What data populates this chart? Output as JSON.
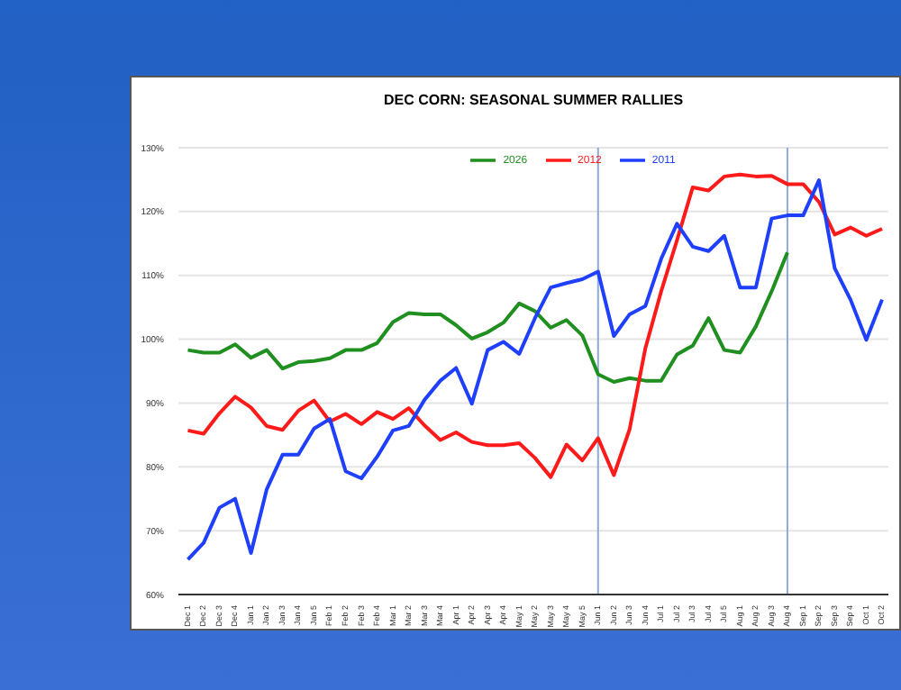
{
  "chart_data": {
    "type": "line",
    "title": "DEC CORN: SEASONAL SUMMER RALLIES",
    "categories": [
      "Dec 1",
      "Dec 2",
      "Dec 3",
      "Dec 4",
      "Jan 1",
      "Jan 2",
      "Jan 3",
      "Jan 4",
      "Jan 5",
      "Feb 1",
      "Feb 2",
      "Feb 3",
      "Feb 4",
      "Mar 1",
      "Mar 2",
      "Mar 3",
      "Mar 4",
      "Apr 1",
      "Apr 2",
      "Apr 3",
      "Apr 4",
      "May 1",
      "May 2",
      "May 3",
      "May 4",
      "May 5",
      "Jun 1",
      "Jun 2",
      "Jun 3",
      "Jun 4",
      "Jul 1",
      "Jul 2",
      "Jul 3",
      "Jul 4",
      "Jul 5",
      "Aug 1",
      "Aug 2",
      "Aug 3",
      "Aug 4",
      "Sep 1",
      "Sep 2",
      "Sep 3",
      "Sep 4",
      "Oct 1",
      "Oct 2"
    ],
    "series": [
      {
        "name": "2026",
        "color": "#1f8f1f",
        "values": [
          98.3,
          97.9,
          97.9,
          99.2,
          97.1,
          98.3,
          95.4,
          96.4,
          96.6,
          97.0,
          98.3,
          98.3,
          99.4,
          102.7,
          104.1,
          103.9,
          103.9,
          102.2,
          100.1,
          101.1,
          102.6,
          105.6,
          104.4,
          101.8,
          103.0,
          100.6,
          94.5,
          93.3,
          93.9,
          93.5,
          93.5,
          97.6,
          99.0,
          103.3,
          98.3,
          97.9,
          102.0,
          107.5,
          113.6,
          null,
          null,
          null,
          null,
          null,
          null
        ]
      },
      {
        "name": "2012",
        "color": "#ff1a1a",
        "values": [
          85.7,
          85.2,
          88.4,
          91.0,
          89.3,
          86.4,
          85.8,
          88.8,
          90.4,
          87.1,
          88.3,
          86.7,
          88.6,
          87.5,
          89.2,
          86.5,
          84.2,
          85.4,
          83.9,
          83.4,
          83.4,
          83.7,
          81.4,
          78.4,
          83.5,
          81.0,
          84.5,
          78.7,
          85.9,
          98.6,
          107.5,
          115.5,
          123.8,
          123.3,
          125.5,
          125.8,
          125.5,
          125.6,
          124.3,
          124.3,
          121.5,
          116.4,
          117.5,
          116.2,
          117.3
        ]
      },
      {
        "name": "2011",
        "color": "#1f3fff",
        "values": [
          65.5,
          68.1,
          73.6,
          75.0,
          66.5,
          76.5,
          81.9,
          81.9,
          86.0,
          87.5,
          79.3,
          78.2,
          81.6,
          85.7,
          86.4,
          90.5,
          93.5,
          95.5,
          89.9,
          98.3,
          99.6,
          97.7,
          103.3,
          108.1,
          108.8,
          109.4,
          110.6,
          100.5,
          103.9,
          105.2,
          112.6,
          118.1,
          114.5,
          113.8,
          116.2,
          108.1,
          108.1,
          118.9,
          119.4,
          119.4,
          124.9,
          111.1,
          106.2,
          99.9,
          106.2
        ]
      }
    ],
    "ylim": [
      60,
      130
    ],
    "yticks": [
      {
        "value": 60,
        "label": "60%"
      },
      {
        "value": 70,
        "label": "70%"
      },
      {
        "value": 80,
        "label": "80%"
      },
      {
        "value": 90,
        "label": "90%"
      },
      {
        "value": 100,
        "label": "100%"
      },
      {
        "value": 110,
        "label": "110%"
      },
      {
        "value": 120,
        "label": "120%"
      },
      {
        "value": 130,
        "label": "130%"
      }
    ],
    "grid": "y",
    "legend": "top",
    "marker": "none",
    "line_style": "solid",
    "ref_lines": [
      {
        "axis": "x",
        "value": "Jun 1",
        "color": "#8eaadb"
      },
      {
        "axis": "x",
        "value": "Aug 4",
        "color": "#8eaadb"
      }
    ]
  }
}
